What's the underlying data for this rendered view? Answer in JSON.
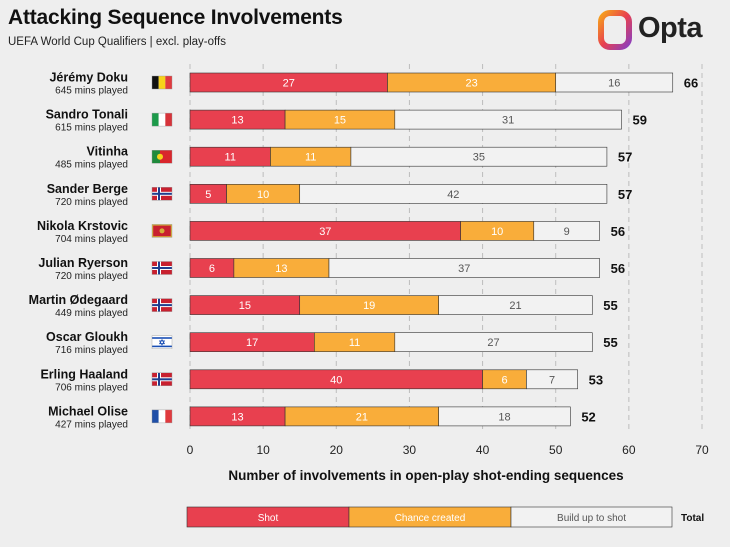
{
  "header": {
    "title": "Attacking Sequence Involvements",
    "subtitle": "UEFA World Cup Qualifiers | excl. play-offs",
    "brand": "Opta"
  },
  "colors": {
    "shot": "#e8404f",
    "chance_created": "#f9ad3a",
    "build_up": "#f2f2f2",
    "background": "#eeeeee",
    "grid": "#bdbdbd"
  },
  "chart_data": {
    "type": "bar",
    "orientation": "horizontal",
    "stacked": true,
    "xlabel": "Number of involvements in open-play shot-ending sequences",
    "xlim": [
      0,
      70
    ],
    "xticks": [
      0,
      10,
      20,
      30,
      40,
      50,
      60,
      70
    ],
    "grid": "vertical dashed",
    "legend_placement": "bottom",
    "legend": [
      "Shot",
      "Chance created",
      "Build up to shot",
      "Total"
    ],
    "categories": [
      {
        "name": "Jérémy Doku",
        "mins": "645 mins played",
        "flag": "belgium-flag"
      },
      {
        "name": "Sandro Tonali",
        "mins": "615 mins played",
        "flag": "italy-flag"
      },
      {
        "name": "Vitinha",
        "mins": "485 mins played",
        "flag": "portugal-flag"
      },
      {
        "name": "Sander Berge",
        "mins": "720 mins played",
        "flag": "norway-flag"
      },
      {
        "name": "Nikola Krstovic",
        "mins": "704 mins played",
        "flag": "montenegro-flag"
      },
      {
        "name": "Julian Ryerson",
        "mins": "720 mins played",
        "flag": "norway-flag"
      },
      {
        "name": "Martin Ødegaard",
        "mins": "449 mins played",
        "flag": "norway-flag"
      },
      {
        "name": "Oscar Gloukh",
        "mins": "716 mins played",
        "flag": "israel-flag"
      },
      {
        "name": "Erling Haaland",
        "mins": "706 mins played",
        "flag": "norway-flag"
      },
      {
        "name": "Michael Olise",
        "mins": "427 mins played",
        "flag": "france-flag"
      }
    ],
    "series": [
      {
        "name": "Shot",
        "values": [
          27,
          13,
          11,
          5,
          37,
          6,
          15,
          17,
          40,
          13
        ]
      },
      {
        "name": "Chance created",
        "values": [
          23,
          15,
          11,
          10,
          10,
          13,
          19,
          11,
          6,
          21
        ]
      },
      {
        "name": "Build up to shot",
        "values": [
          16,
          31,
          35,
          42,
          9,
          37,
          21,
          27,
          7,
          18
        ]
      }
    ],
    "totals": [
      66,
      59,
      57,
      57,
      56,
      56,
      55,
      55,
      53,
      52
    ]
  }
}
